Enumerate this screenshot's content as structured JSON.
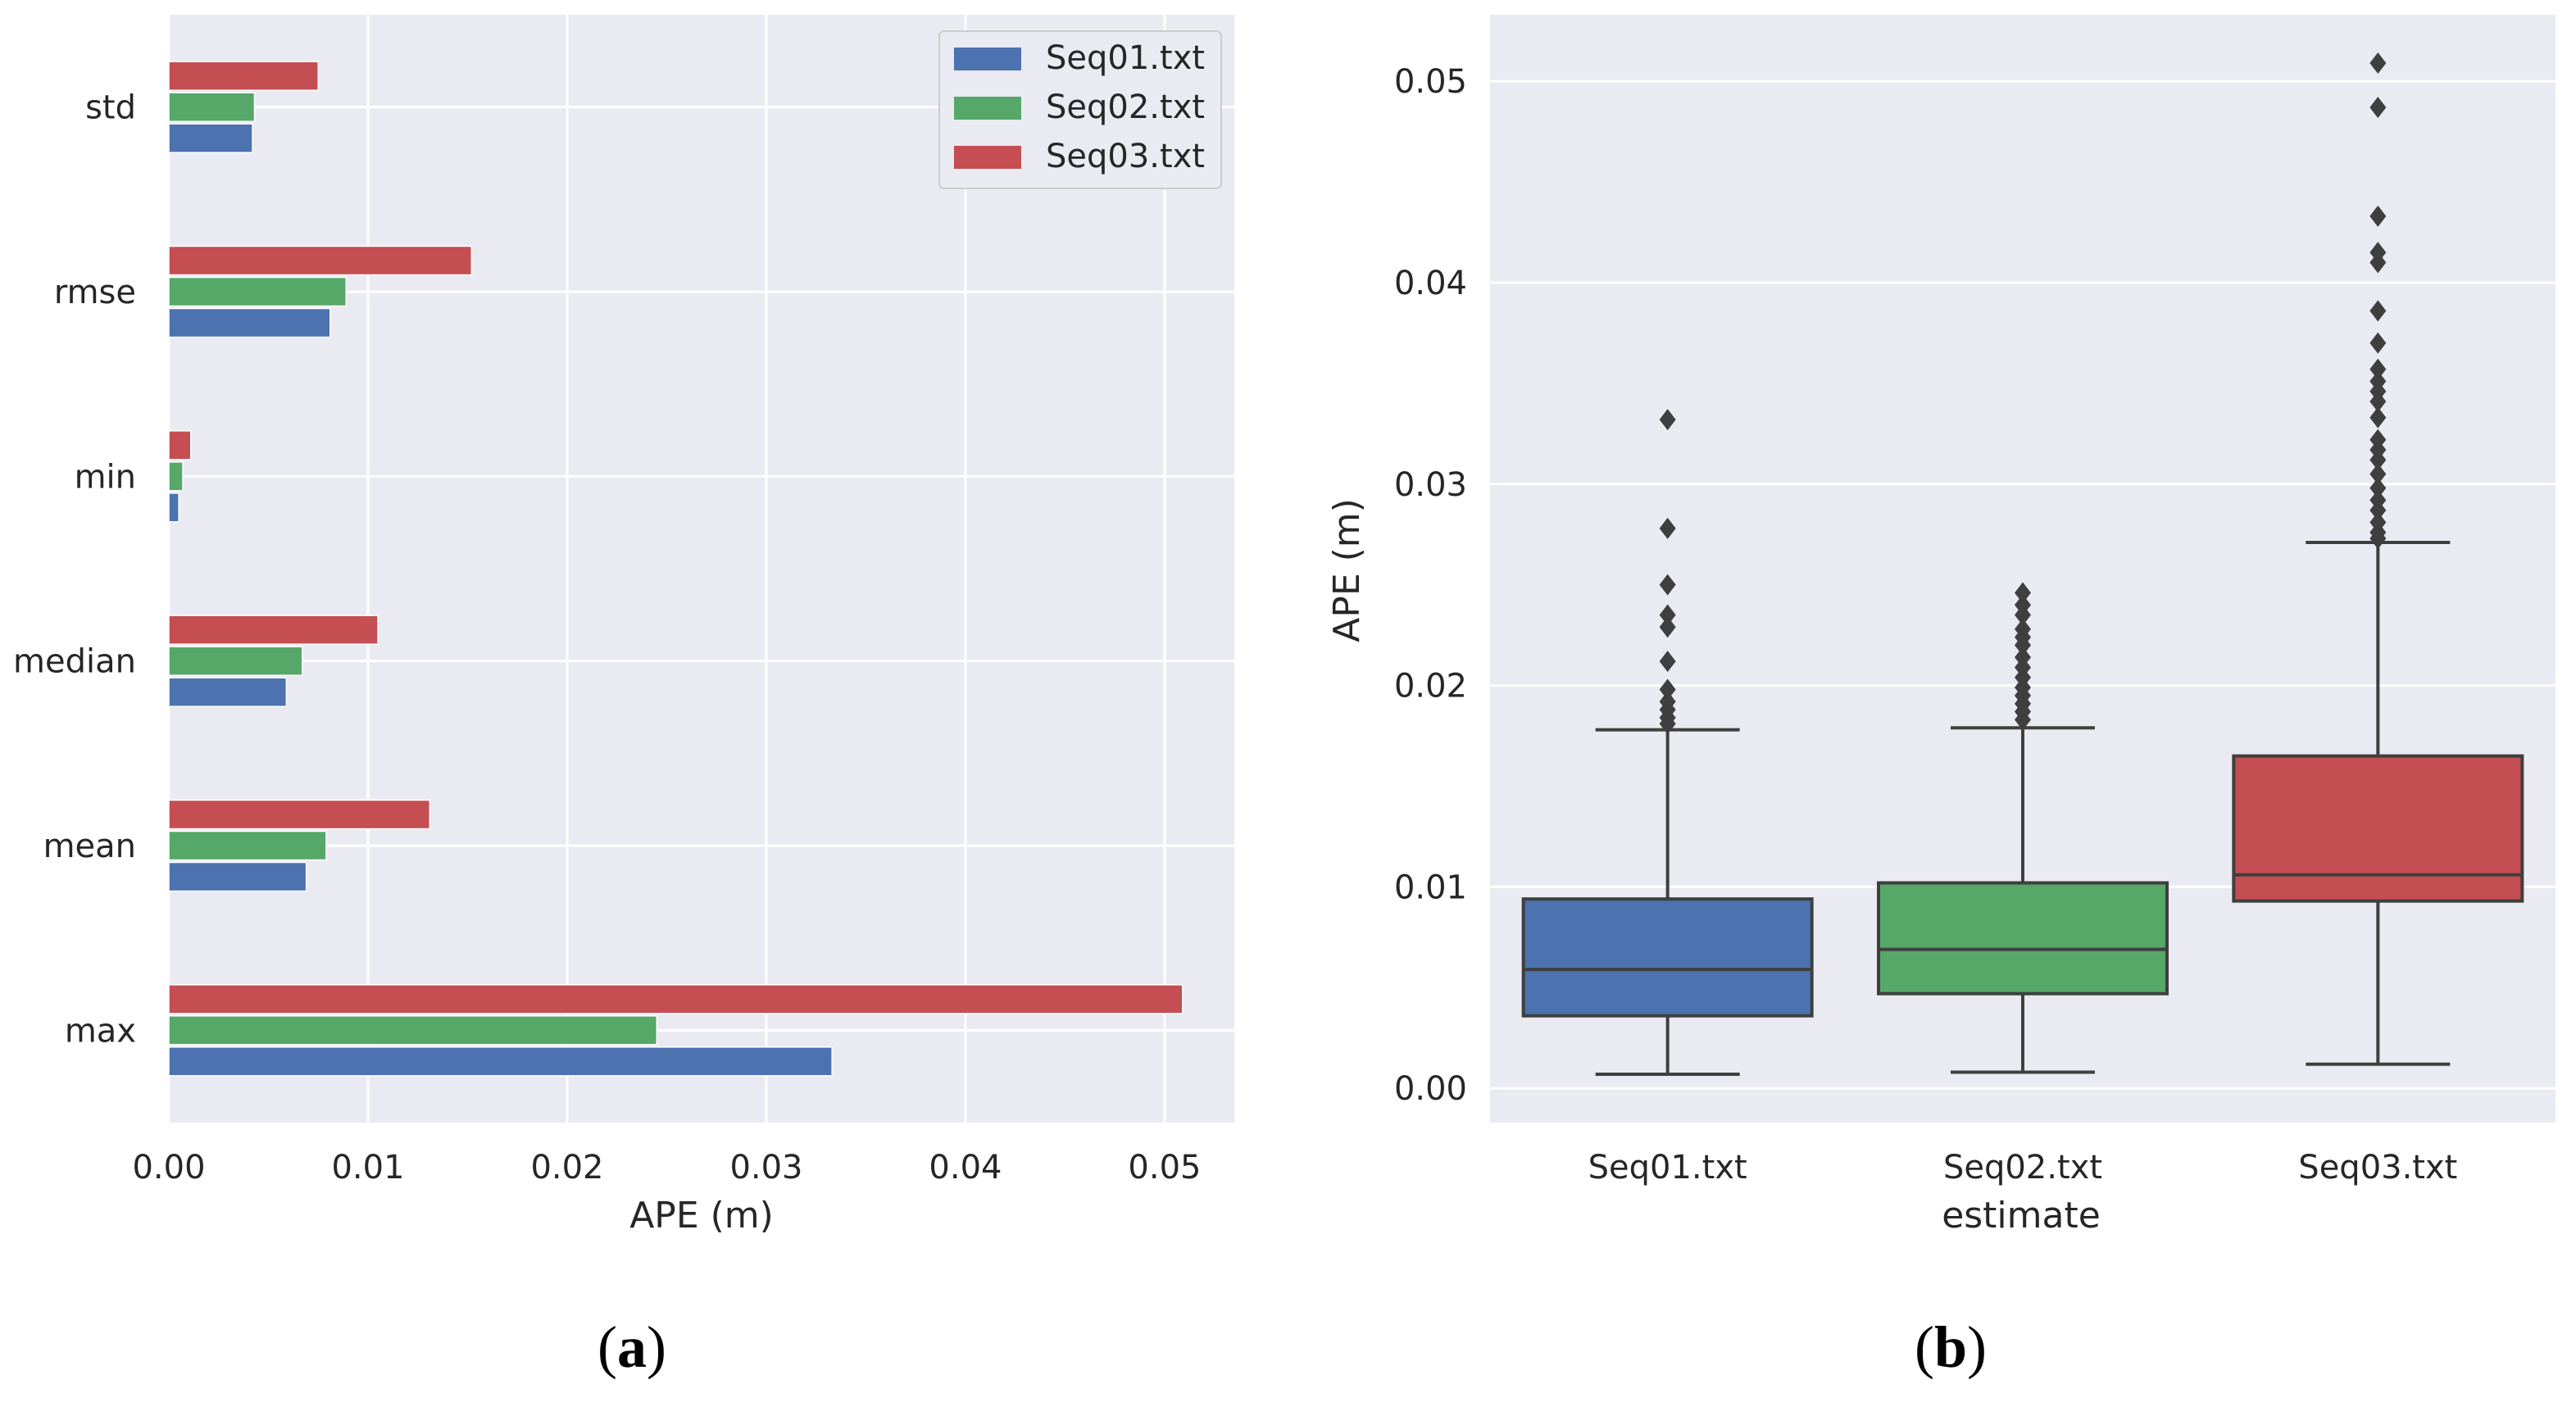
{
  "colors": {
    "panel_bg": "#eaeaf2",
    "grid": "#ffffff",
    "text": "#262626",
    "box_edge": "#3f3f3f",
    "flier": "#3f3f3f",
    "seq01": "#4c72b0",
    "seq02": "#55a868",
    "seq03": "#c44e52"
  },
  "chart_data": [
    {
      "type": "bar",
      "orientation": "horizontal",
      "panel_label": "a",
      "xlabel": "APE (m)",
      "ylabel": "",
      "xlim": [
        0,
        0.0535
      ],
      "xticks": [
        0.0,
        0.01,
        0.02,
        0.03,
        0.04,
        0.05
      ],
      "xtick_labels": [
        "0.00",
        "0.01",
        "0.02",
        "0.03",
        "0.04",
        "0.05"
      ],
      "categories": [
        "std",
        "rmse",
        "min",
        "median",
        "mean",
        "max"
      ],
      "legend_position": "top-right",
      "series": [
        {
          "name": "Seq01.txt",
          "color_key": "seq01",
          "values": [
            0.0042,
            0.0081,
            0.0005,
            0.0059,
            0.0069,
            0.0333
          ]
        },
        {
          "name": "Seq02.txt",
          "color_key": "seq02",
          "values": [
            0.0043,
            0.0089,
            0.0007,
            0.0067,
            0.0079,
            0.0245
          ]
        },
        {
          "name": "Seq03.txt",
          "color_key": "seq03",
          "values": [
            0.0075,
            0.0152,
            0.0011,
            0.0105,
            0.0131,
            0.0509
          ]
        }
      ]
    },
    {
      "type": "box",
      "panel_label": "b",
      "xlabel": "estimate",
      "ylabel": "APE (m)",
      "ylim": [
        -0.0017,
        0.0533
      ],
      "yticks": [
        0.0,
        0.01,
        0.02,
        0.03,
        0.04,
        0.05
      ],
      "ytick_labels": [
        "0.00",
        "0.01",
        "0.02",
        "0.03",
        "0.04",
        "0.05"
      ],
      "categories": [
        "Seq01.txt",
        "Seq02.txt",
        "Seq03.txt"
      ],
      "boxes": [
        {
          "name": "Seq01.txt",
          "color_key": "seq01",
          "whislo": 0.0007,
          "q1": 0.0036,
          "median": 0.0059,
          "q3": 0.0094,
          "whishi": 0.0178,
          "fliers": [
            0.0332,
            0.0278,
            0.025,
            0.0235,
            0.0229,
            0.0212,
            0.0198,
            0.0192,
            0.0188,
            0.0184,
            0.0181
          ]
        },
        {
          "name": "Seq02.txt",
          "color_key": "seq02",
          "whislo": 0.0008,
          "q1": 0.0047,
          "median": 0.0069,
          "q3": 0.0102,
          "whishi": 0.0179,
          "fliers": [
            0.0246,
            0.024,
            0.0235,
            0.0228,
            0.0224,
            0.022,
            0.0214,
            0.0209,
            0.0204,
            0.0199,
            0.0195,
            0.0191,
            0.0187,
            0.0183
          ]
        },
        {
          "name": "Seq03.txt",
          "color_key": "seq03",
          "whislo": 0.0012,
          "q1": 0.0093,
          "median": 0.0106,
          "q3": 0.0165,
          "whishi": 0.0271,
          "fliers": [
            0.0509,
            0.0487,
            0.0433,
            0.0415,
            0.041,
            0.0386,
            0.037,
            0.0357,
            0.0351,
            0.0346,
            0.0341,
            0.0333,
            0.0322,
            0.0317,
            0.0312,
            0.0305,
            0.0298,
            0.0292,
            0.0287,
            0.0281,
            0.0276,
            0.0273
          ]
        }
      ]
    }
  ]
}
